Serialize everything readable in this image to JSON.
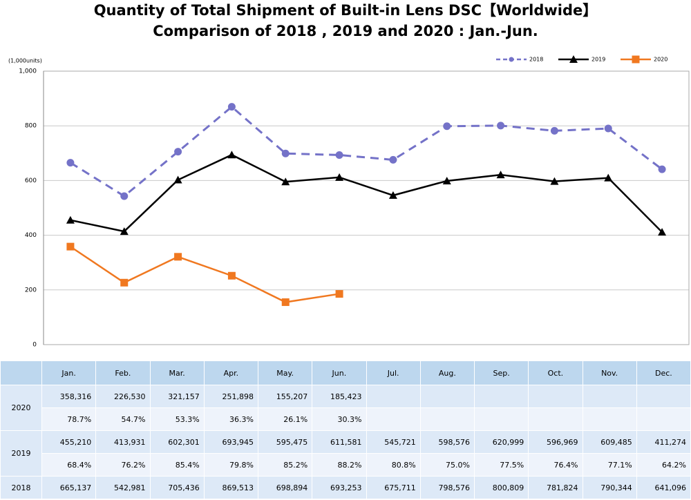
{
  "chart_data": {
    "type": "line",
    "title": "Quantity of Total Shipment of Built-in Lens DSC【Worldwide】",
    "subtitle": "Comparison of 2018 , 2019 and 2020 : Jan.-Jun.",
    "y_label": "(1,000units)",
    "categories": [
      "Jan.",
      "Feb.",
      "Mar.",
      "Apr.",
      "May.",
      "Jun.",
      "Jul.",
      "Aug.",
      "Sep.",
      "Oct.",
      "Nov.",
      "Dec."
    ],
    "ylim": [
      0,
      1000
    ],
    "yticks": [
      0,
      200,
      400,
      600,
      800,
      {
        "value": 1000,
        "label": "1,000"
      }
    ],
    "grid": true,
    "legend": "top-right",
    "series": [
      {
        "name": "2018",
        "color": "#7472c8",
        "dash": true,
        "marker": "circle",
        "values": [
          665.137,
          542.981,
          705.436,
          869.513,
          698.894,
          693.253,
          675.711,
          798.576,
          800.809,
          781.824,
          790.344,
          641.096
        ]
      },
      {
        "name": "2019",
        "color": "#000000",
        "dash": false,
        "marker": "triangle",
        "values": [
          455.21,
          413.931,
          602.301,
          693.945,
          595.475,
          611.581,
          545.721,
          598.576,
          620.999,
          596.969,
          609.485,
          411.274
        ]
      },
      {
        "name": "2020",
        "color": "#f07820",
        "dash": false,
        "marker": "square",
        "values": [
          358.316,
          226.53,
          321.157,
          251.898,
          155.207,
          185.423,
          null,
          null,
          null,
          null,
          null,
          null
        ]
      }
    ]
  },
  "table": {
    "rows": [
      {
        "year": "2020",
        "values": [
          "358,316",
          "226,530",
          "321,157",
          "251,898",
          "155,207",
          "185,423"
        ],
        "ratios": [
          "78.7%",
          "54.7%",
          "53.3%",
          "36.3%",
          "26.1%",
          "30.3%"
        ]
      },
      {
        "year": "2019",
        "values": [
          "455,210",
          "413,931",
          "602,301",
          "693,945",
          "595,475",
          "611,581",
          "545,721",
          "598,576",
          "620,999",
          "596,969",
          "609,485",
          "411,274"
        ],
        "ratios": [
          "68.4%",
          "76.2%",
          "85.4%",
          "79.8%",
          "85.2%",
          "88.2%",
          "80.8%",
          "75.0%",
          "77.5%",
          "76.4%",
          "77.1%",
          "64.2%"
        ]
      },
      {
        "year": "2018",
        "values": [
          "665,137",
          "542,981",
          "705,436",
          "869,513",
          "698,894",
          "693,253",
          "675,711",
          "798,576",
          "800,809",
          "781,824",
          "790,344",
          "641,096"
        ]
      }
    ]
  }
}
